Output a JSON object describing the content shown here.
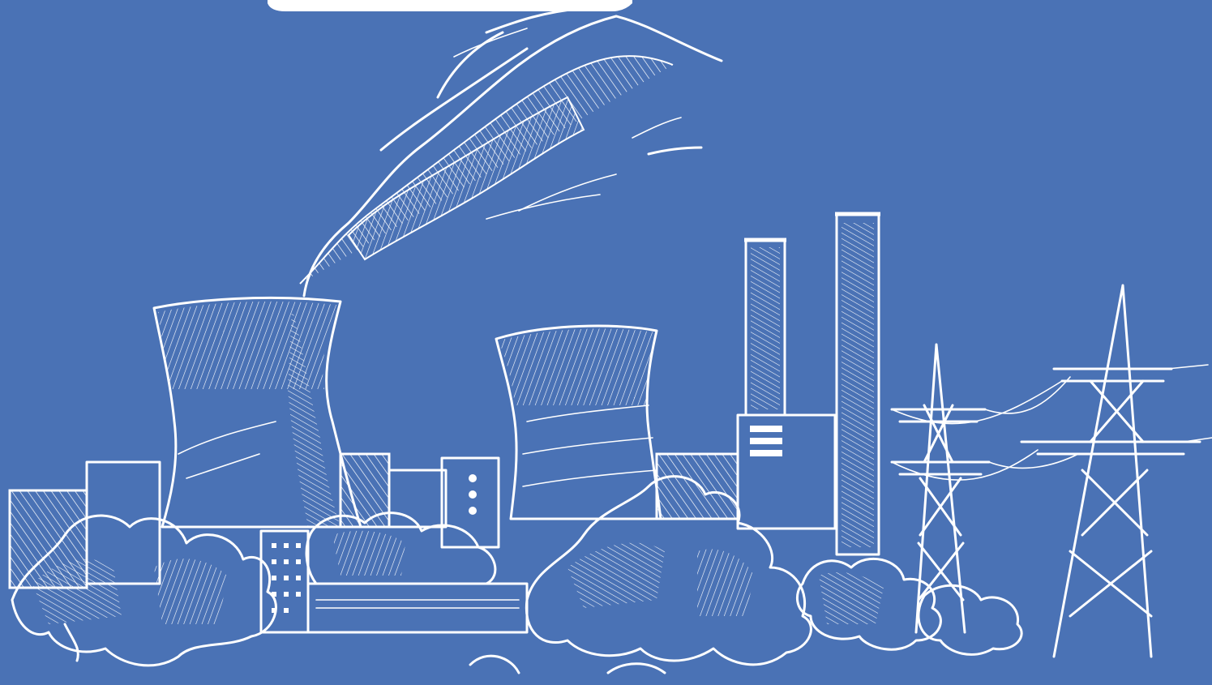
{
  "scene": {
    "subject": "power-plant-sketch",
    "background_color": "#4a72b5",
    "line_color": "#ffffff",
    "elements": [
      "cooling-tower",
      "cooling-tower",
      "chimney",
      "chimney",
      "transmission-tower",
      "transmission-tower",
      "smoke-plume",
      "trees",
      "factory-buildings"
    ]
  }
}
